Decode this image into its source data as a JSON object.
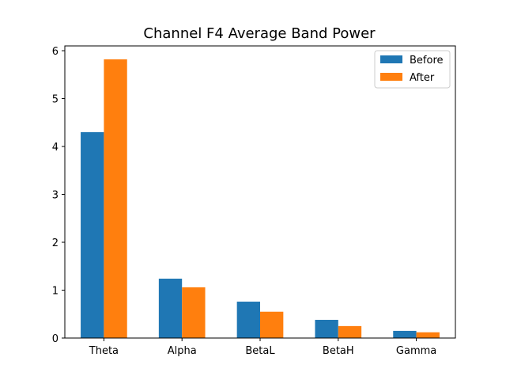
{
  "chart_data": {
    "type": "bar",
    "title": "Channel F4 Average Band Power",
    "xlabel": "",
    "ylabel": "",
    "categories": [
      "Theta",
      "Alpha",
      "BetaL",
      "BetaH",
      "Gamma"
    ],
    "series": [
      {
        "name": "Before",
        "color": "#1f77b4",
        "values": [
          4.3,
          1.24,
          0.76,
          0.38,
          0.15
        ]
      },
      {
        "name": "After",
        "color": "#ff7f0e",
        "values": [
          5.82,
          1.06,
          0.55,
          0.25,
          0.12
        ]
      }
    ],
    "ylim": [
      0,
      6.1
    ],
    "yticks": [
      "0",
      "1",
      "2",
      "3",
      "4",
      "5",
      "6"
    ],
    "grid": false,
    "legend": {
      "position": "top-right",
      "entries": [
        "Before",
        "After"
      ]
    }
  }
}
